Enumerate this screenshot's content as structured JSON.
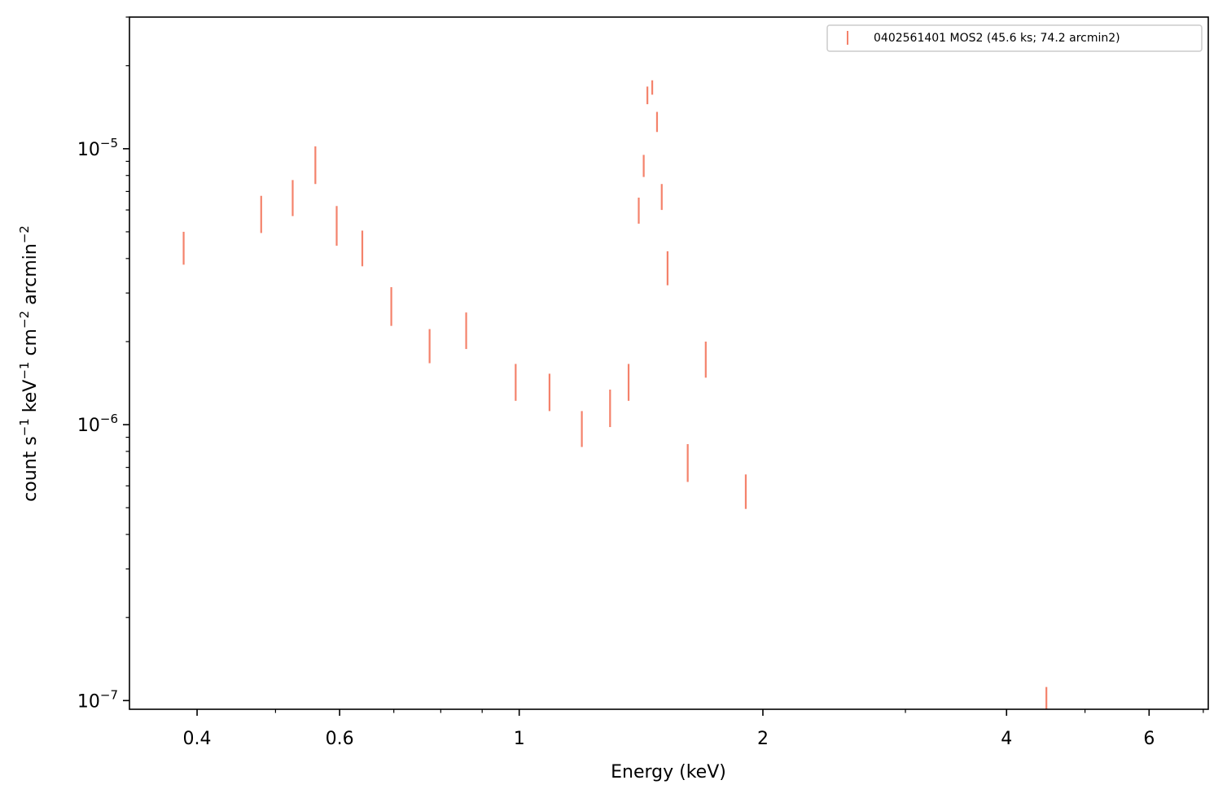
{
  "chart_data": {
    "type": "scatter",
    "title": "",
    "xlabel": "Energy (keV)",
    "ylabel": "count s⁻¹ keV⁻¹ cm⁻² arcmin⁻²",
    "xscale": "log",
    "yscale": "log",
    "xlim": [
      0.33,
      7.1
    ],
    "ylim": [
      9.3e-08,
      3e-05
    ],
    "x_major_ticks": [
      {
        "value": 0.4,
        "label": "0.4"
      },
      {
        "value": 0.6,
        "label": "0.6"
      },
      {
        "value": 1,
        "label": "1"
      },
      {
        "value": 2,
        "label": "2"
      },
      {
        "value": 4,
        "label": "4"
      },
      {
        "value": 6,
        "label": "6"
      }
    ],
    "x_minor_ticks": [
      0.5,
      0.7,
      0.8,
      0.9,
      3,
      5,
      7
    ],
    "y_major_ticks": [
      {
        "value": 1e-07,
        "label_base": "10",
        "label_exp": "−7"
      },
      {
        "value": 1e-06,
        "label_base": "10",
        "label_exp": "−6"
      },
      {
        "value": 1e-05,
        "label_base": "10",
        "label_exp": "−5"
      }
    ],
    "y_minor_ticks": [
      2e-07,
      3e-07,
      4e-07,
      5e-07,
      6e-07,
      7e-07,
      8e-07,
      9e-07,
      2e-06,
      3e-06,
      4e-06,
      5e-06,
      6e-06,
      7e-06,
      8e-06,
      9e-06,
      2e-05,
      3e-05
    ],
    "grid": false,
    "legend_position": "top-right",
    "series": [
      {
        "name": "0402561401 MOS2 (45.6 ks; 74.2 arcmin2)",
        "color": "#f4826b",
        "marker": "errorbar-vertical",
        "points": [
          {
            "x": 0.385,
            "y": 4.35e-06,
            "ylo": 3.8e-06,
            "yhi": 5e-06
          },
          {
            "x": 0.48,
            "y": 5.8e-06,
            "ylo": 4.95e-06,
            "yhi": 6.75e-06
          },
          {
            "x": 0.525,
            "y": 6.7e-06,
            "ylo": 5.7e-06,
            "yhi": 7.7e-06
          },
          {
            "x": 0.56,
            "y": 8.7e-06,
            "ylo": 7.45e-06,
            "yhi": 1.02e-05
          },
          {
            "x": 0.595,
            "y": 5.3e-06,
            "ylo": 4.45e-06,
            "yhi": 6.2e-06
          },
          {
            "x": 0.64,
            "y": 4.35e-06,
            "ylo": 3.75e-06,
            "yhi": 5.05e-06
          },
          {
            "x": 0.695,
            "y": 2.7e-06,
            "ylo": 2.28e-06,
            "yhi": 3.15e-06
          },
          {
            "x": 0.775,
            "y": 1.93e-06,
            "ylo": 1.67e-06,
            "yhi": 2.22e-06
          },
          {
            "x": 0.86,
            "y": 2.2e-06,
            "ylo": 1.88e-06,
            "yhi": 2.55e-06
          },
          {
            "x": 0.99,
            "y": 1.43e-06,
            "ylo": 1.22e-06,
            "yhi": 1.66e-06
          },
          {
            "x": 1.09,
            "y": 1.32e-06,
            "ylo": 1.12e-06,
            "yhi": 1.53e-06
          },
          {
            "x": 1.195,
            "y": 9.6e-07,
            "ylo": 8.3e-07,
            "yhi": 1.12e-06
          },
          {
            "x": 1.295,
            "y": 1.15e-06,
            "ylo": 9.8e-07,
            "yhi": 1.34e-06
          },
          {
            "x": 1.365,
            "y": 1.43e-06,
            "ylo": 1.22e-06,
            "yhi": 1.66e-06
          },
          {
            "x": 1.405,
            "y": 5.95e-06,
            "ylo": 5.35e-06,
            "yhi": 6.65e-06
          },
          {
            "x": 1.425,
            "y": 8.7e-06,
            "ylo": 7.9e-06,
            "yhi": 9.5e-06
          },
          {
            "x": 1.44,
            "y": 1.56e-05,
            "ylo": 1.45e-05,
            "yhi": 1.68e-05
          },
          {
            "x": 1.46,
            "y": 1.67e-05,
            "ylo": 1.57e-05,
            "yhi": 1.77e-05
          },
          {
            "x": 1.48,
            "y": 1.25e-05,
            "ylo": 1.15e-05,
            "yhi": 1.36e-05
          },
          {
            "x": 1.5,
            "y": 6.7e-06,
            "ylo": 6e-06,
            "yhi": 7.45e-06
          },
          {
            "x": 1.525,
            "y": 3.7e-06,
            "ylo": 3.2e-06,
            "yhi": 4.25e-06
          },
          {
            "x": 1.615,
            "y": 7.3e-07,
            "ylo": 6.2e-07,
            "yhi": 8.5e-07
          },
          {
            "x": 1.7,
            "y": 1.73e-06,
            "ylo": 1.48e-06,
            "yhi": 2e-06
          },
          {
            "x": 1.905,
            "y": 5.7e-07,
            "ylo": 4.95e-07,
            "yhi": 6.6e-07
          },
          {
            "x": 4.48,
            "y": 9.6e-08,
            "ylo": 8.2e-08,
            "yhi": 1.12e-07
          }
        ]
      }
    ]
  }
}
